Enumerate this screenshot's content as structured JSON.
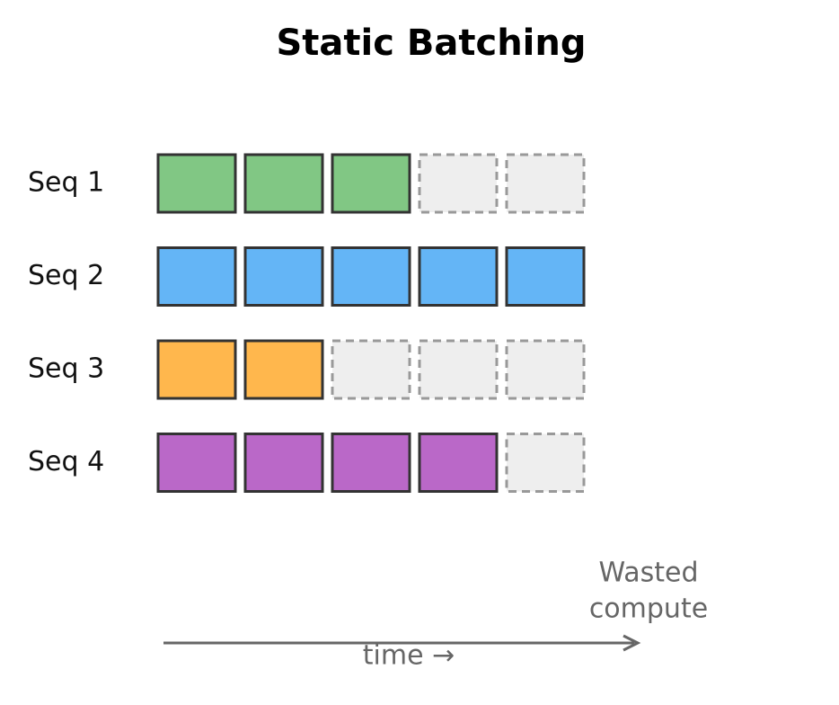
{
  "title": "Static Batching",
  "slots": 5,
  "rows": [
    {
      "label": "Seq 1",
      "tokens": 3,
      "color": "#81c784"
    },
    {
      "label": "Seq 2",
      "tokens": 5,
      "color": "#64b5f6"
    },
    {
      "label": "Seq 3",
      "tokens": 2,
      "color": "#ffb74d"
    },
    {
      "label": "Seq 4",
      "tokens": 4,
      "color": "#ba68c8"
    }
  ],
  "annotation": [
    "Wasted",
    "compute"
  ],
  "axis_label": "time →"
}
